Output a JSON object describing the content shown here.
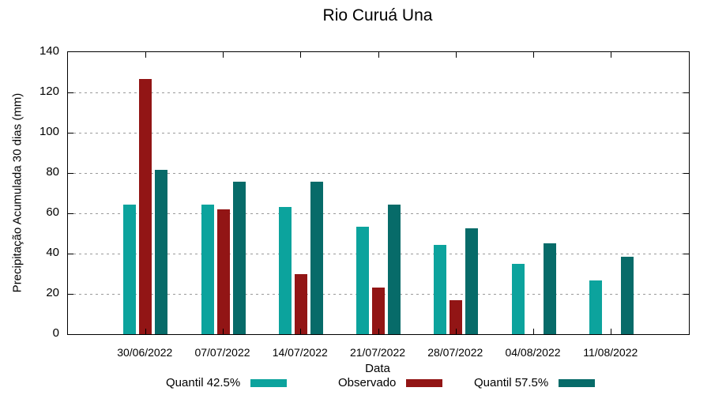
{
  "chart_data": {
    "type": "bar",
    "title": "Rio Curuá Una",
    "xlabel": "Data",
    "ylabel": "Precipitação Acumulada 30 dias (mm)",
    "ylim": [
      0,
      140
    ],
    "yticks": [
      0,
      20,
      40,
      60,
      80,
      100,
      120,
      140
    ],
    "grid": "horizontal dotted gray lines at y=20..120",
    "legend_position": "bottom",
    "categories": [
      "30/06/2022",
      "07/07/2022",
      "14/07/2022",
      "21/07/2022",
      "28/07/2022",
      "04/08/2022",
      "11/08/2022"
    ],
    "series": [
      {
        "name": "Quantil 42.5%",
        "color": "#0ca39d",
        "values": [
          64.5,
          64.5,
          63,
          53.5,
          44.5,
          35,
          26.5
        ]
      },
      {
        "name": "Observado",
        "color": "#921515",
        "values": [
          126.5,
          62,
          30,
          23,
          17,
          null,
          null
        ]
      },
      {
        "name": "Quantil 57.5%",
        "color": "#076b69",
        "values": [
          81.5,
          75.5,
          75.5,
          64.5,
          52.5,
          45,
          38.5
        ]
      }
    ]
  },
  "colors": {
    "axis": "#000000",
    "grid": "#9a9a9a",
    "background": "#ffffff"
  }
}
